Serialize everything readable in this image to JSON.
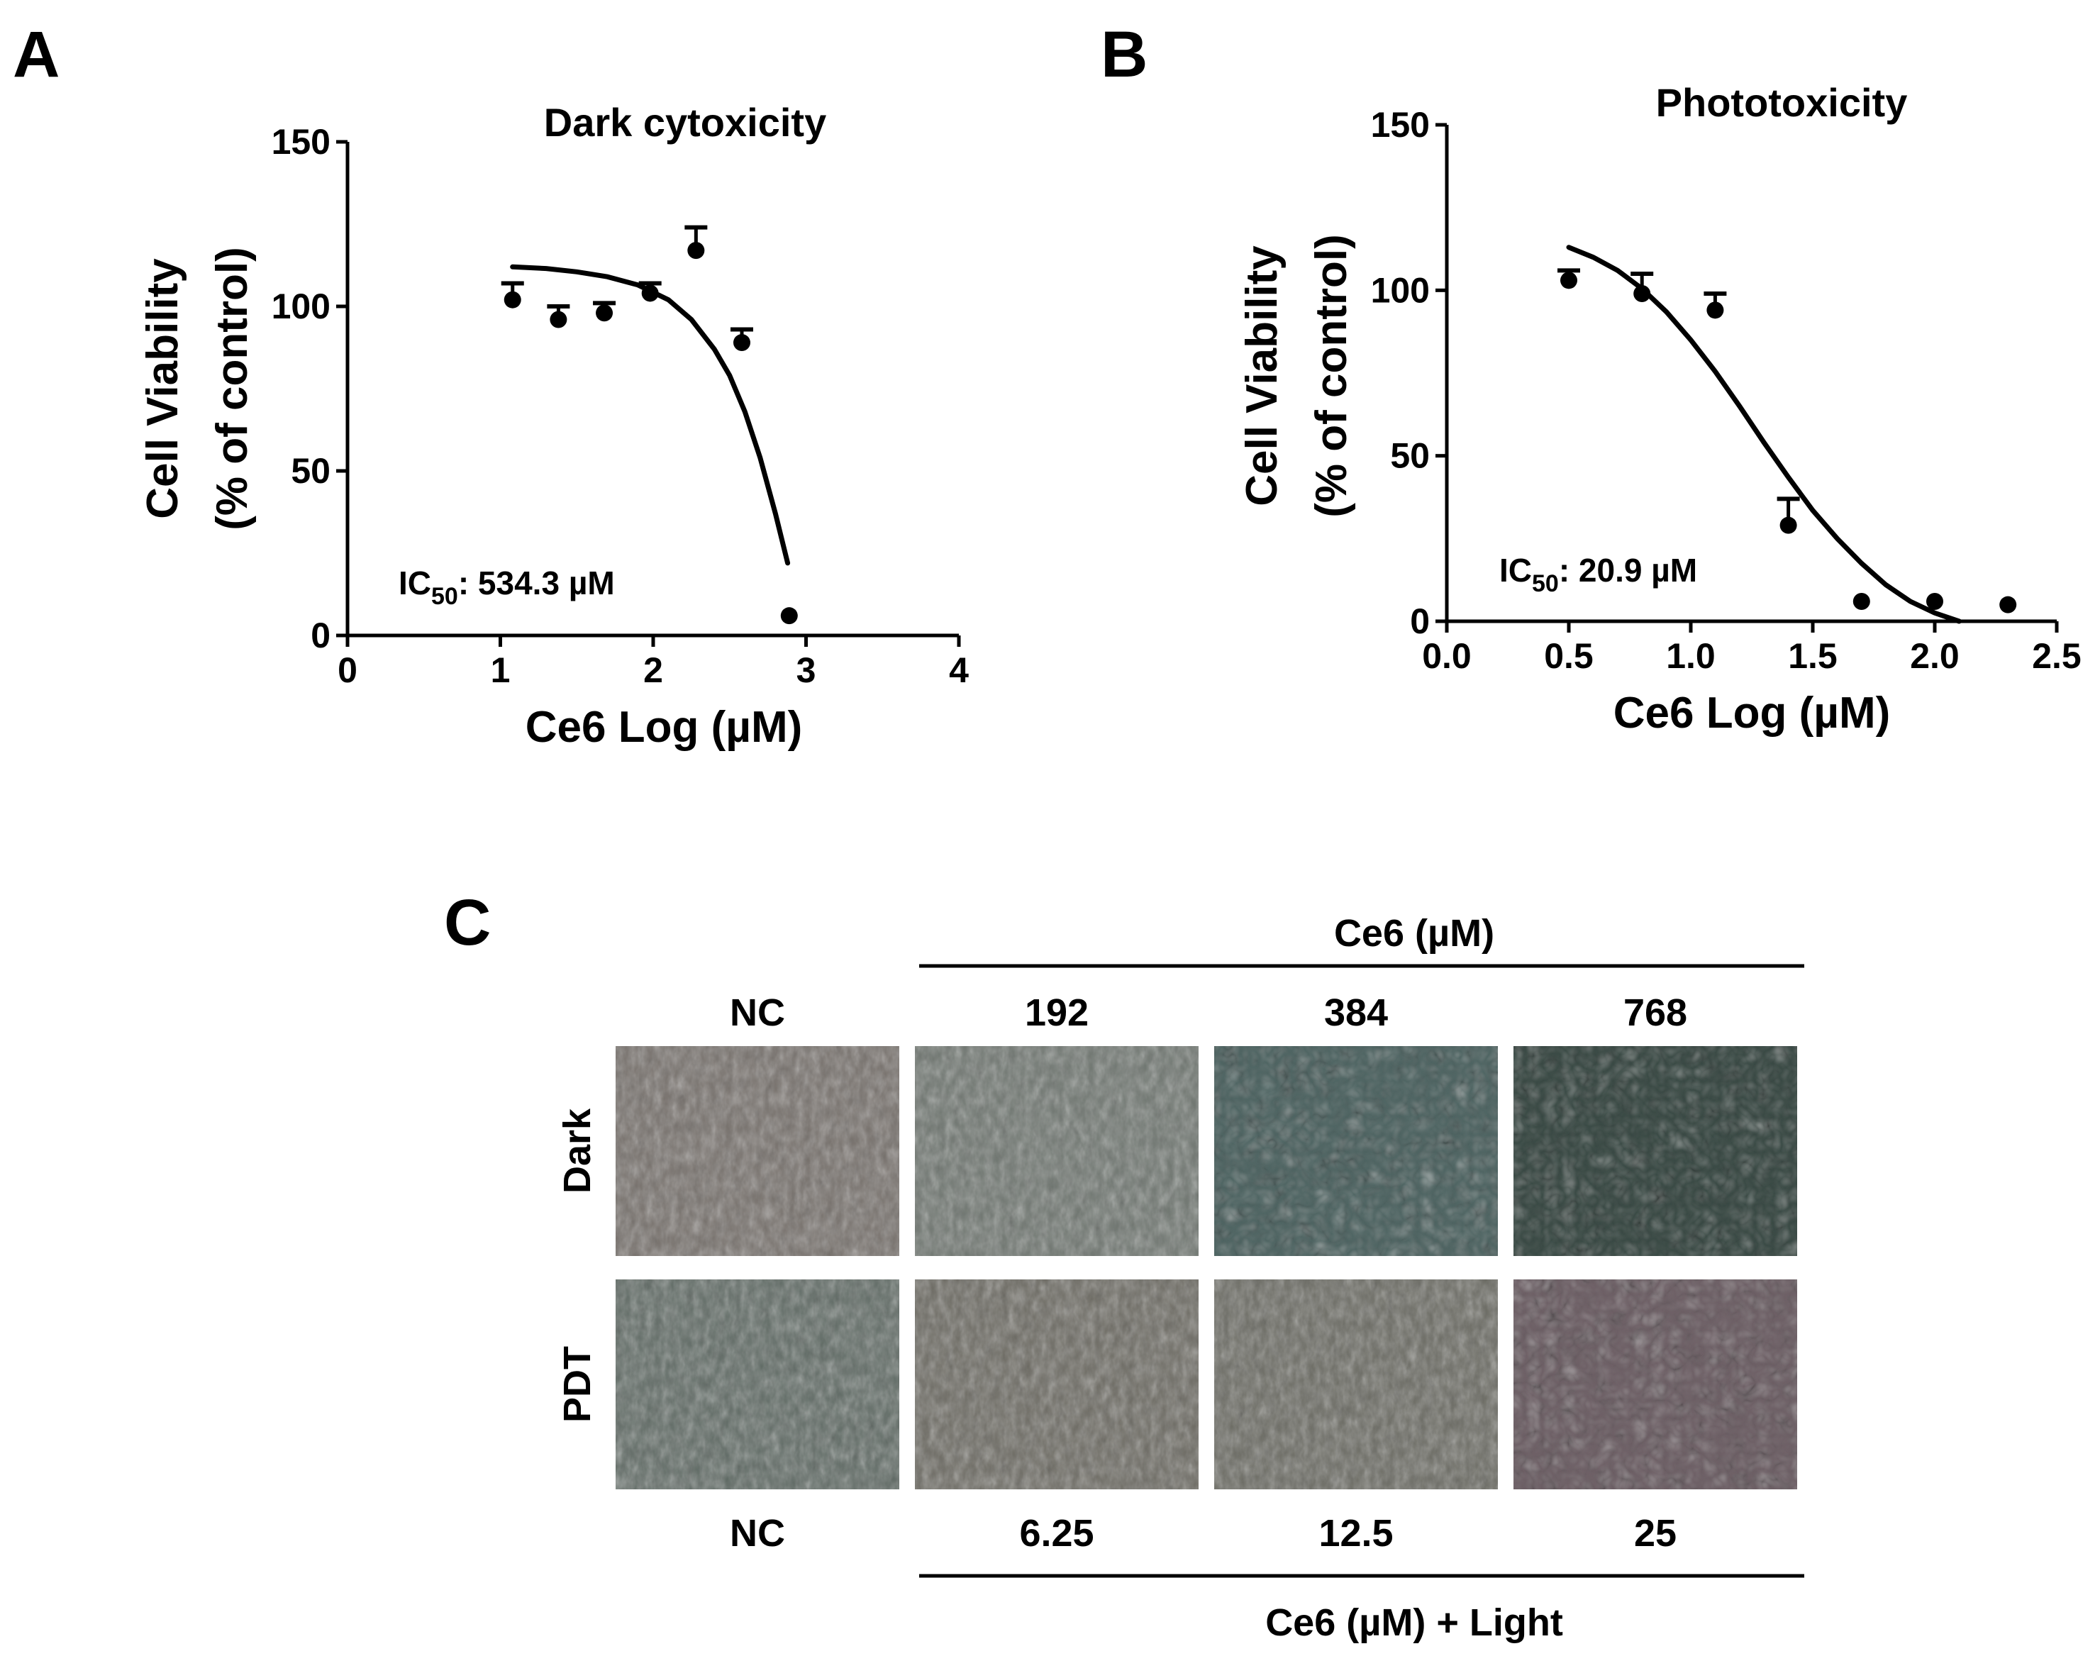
{
  "panels": {
    "a": {
      "letter": "A"
    },
    "b": {
      "letter": "B"
    },
    "c": {
      "letter": "C"
    }
  },
  "chart_data": [
    {
      "id": "a",
      "type": "scatter",
      "title": "Dark cytoxicity",
      "xlabel": "Ce6 Log (µM)",
      "ylabel_line1": "Cell Viability",
      "ylabel_line2": "(% of control)",
      "xlim": [
        0,
        4
      ],
      "ylim": [
        0,
        150
      ],
      "xticks": [
        0,
        1,
        2,
        3,
        4
      ],
      "xtick_labels": [
        "0",
        "1",
        "2",
        "3",
        "4"
      ],
      "yticks": [
        0,
        50,
        100,
        150
      ],
      "ytick_labels": [
        "0",
        "50",
        "100",
        "150"
      ],
      "points": [
        {
          "x": 1.08,
          "y": 102,
          "err": 5
        },
        {
          "x": 1.38,
          "y": 96,
          "err": 4
        },
        {
          "x": 1.68,
          "y": 98,
          "err": 3
        },
        {
          "x": 1.98,
          "y": 104,
          "err": 3
        },
        {
          "x": 2.28,
          "y": 117,
          "err": 7
        },
        {
          "x": 2.58,
          "y": 89,
          "err": 4
        },
        {
          "x": 2.89,
          "y": 6,
          "err": 0
        }
      ],
      "fit_curve": [
        [
          1.08,
          112
        ],
        [
          1.3,
          111.5
        ],
        [
          1.5,
          110.5
        ],
        [
          1.7,
          109
        ],
        [
          1.9,
          106.5
        ],
        [
          2.1,
          102
        ],
        [
          2.25,
          96
        ],
        [
          2.4,
          87
        ],
        [
          2.5,
          79
        ],
        [
          2.6,
          68
        ],
        [
          2.7,
          54
        ],
        [
          2.8,
          37
        ],
        [
          2.88,
          22
        ]
      ],
      "annotation": {
        "prefix": "IC",
        "subscript": "50",
        "value": ": 534.3 µM"
      }
    },
    {
      "id": "b",
      "type": "scatter",
      "title": "Phototoxicity",
      "xlabel": "Ce6 Log (µM)",
      "ylabel_line1": "Cell Viability",
      "ylabel_line2": "(% of control)",
      "xlim": [
        0,
        2.5
      ],
      "ylim": [
        0,
        150
      ],
      "xticks": [
        0,
        0.5,
        1,
        1.5,
        2,
        2.5
      ],
      "xtick_labels": [
        "0.0",
        "0.5",
        "1.0",
        "1.5",
        "2.0",
        "2.5"
      ],
      "yticks": [
        0,
        50,
        100,
        150
      ],
      "ytick_labels": [
        "0",
        "50",
        "100",
        "150"
      ],
      "points": [
        {
          "x": 0.5,
          "y": 103,
          "err": 3
        },
        {
          "x": 0.8,
          "y": 99,
          "err": 6
        },
        {
          "x": 1.1,
          "y": 94,
          "err": 5
        },
        {
          "x": 1.4,
          "y": 29,
          "err": 8
        },
        {
          "x": 1.7,
          "y": 6,
          "err": 0
        },
        {
          "x": 2.0,
          "y": 6,
          "err": 0
        },
        {
          "x": 2.3,
          "y": 5,
          "err": 0
        }
      ],
      "fit_curve": [
        [
          0.5,
          113
        ],
        [
          0.6,
          110
        ],
        [
          0.7,
          106
        ],
        [
          0.8,
          100.5
        ],
        [
          0.9,
          93.5
        ],
        [
          1.0,
          85
        ],
        [
          1.1,
          75.5
        ],
        [
          1.2,
          65
        ],
        [
          1.3,
          54
        ],
        [
          1.4,
          43.5
        ],
        [
          1.5,
          33.5
        ],
        [
          1.6,
          25
        ],
        [
          1.7,
          17.5
        ],
        [
          1.8,
          11
        ],
        [
          1.9,
          6
        ],
        [
          2.0,
          2.5
        ],
        [
          2.1,
          0
        ]
      ],
      "annotation": {
        "prefix": "IC",
        "subscript": "50",
        "value": ": 20.9 µM"
      }
    }
  ],
  "micrograph_grid": {
    "top_group_label": "Ce6 (µM)",
    "bottom_group_label": "Ce6 (µM) + Light",
    "top_columns": [
      "NC",
      "192",
      "384",
      "768"
    ],
    "bottom_columns": [
      "NC",
      "6.25",
      "12.5",
      "25"
    ],
    "rows": [
      "Dark",
      "PDT"
    ],
    "tile_colors": {
      "dark": [
        "#76706b",
        "#6f7670",
        "#4f6563",
        "#3a4a45"
      ],
      "pdt": [
        "#5f6a64",
        "#6c6a62",
        "#6a6a62",
        "#6e6066"
      ]
    }
  }
}
